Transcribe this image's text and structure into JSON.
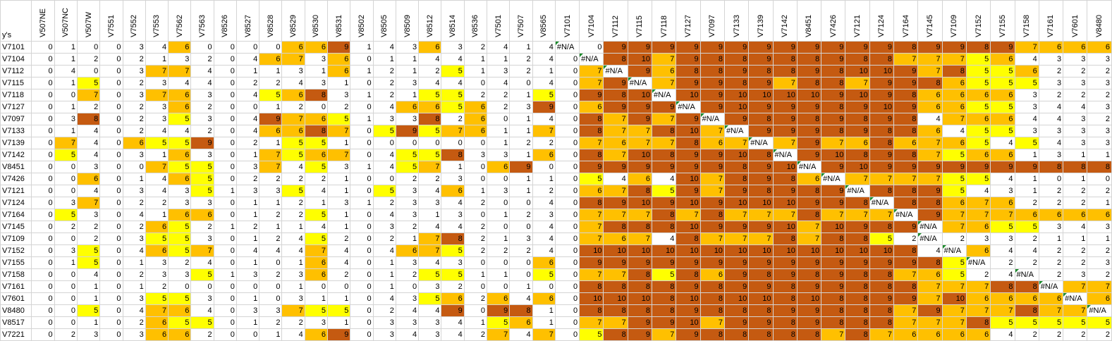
{
  "corner_label": "y's",
  "columns": [
    "V507NE",
    "V507NC",
    "V507W",
    "V7551",
    "V7552",
    "V7553",
    "V7562",
    "V7563",
    "V8526",
    "V8527",
    "V8528",
    "V8529",
    "V8530",
    "V8531",
    "V8502",
    "V8505",
    "V8509",
    "V8512",
    "V8514",
    "V8536",
    "V7501",
    "V7507",
    "V8565",
    "V7101",
    "V7104",
    "V7112",
    "V7115",
    "V7118",
    "V7127",
    "V7097",
    "V7133",
    "V7139",
    "V7142",
    "V8451",
    "V7426",
    "V7121",
    "V7124",
    "V7164",
    "V7145",
    "V7109",
    "V7152",
    "V7155",
    "V7158",
    "V7161",
    "V7601",
    "V8480"
  ],
  "rows": [
    {
      "label": "V7101",
      "values": [
        "0",
        "1",
        "0",
        "0",
        "3",
        "4",
        "6",
        "0",
        "0",
        "0",
        "0",
        "6",
        "6",
        "9",
        "1",
        "4",
        "3",
        "6",
        "3",
        "2",
        "4",
        "1",
        "4",
        "#N/A",
        "0",
        "9",
        "9",
        "9",
        "9",
        "9",
        "9",
        "9",
        "9",
        "9",
        "9",
        "9",
        "9",
        "8",
        "9",
        "9",
        "8",
        "9",
        "7",
        "6",
        "6",
        "6"
      ]
    },
    {
      "label": "V7104",
      "values": [
        "0",
        "1",
        "2",
        "0",
        "2",
        "1",
        "3",
        "2",
        "0",
        "4",
        "6",
        "7",
        "3",
        "6",
        "0",
        "1",
        "1",
        "4",
        "4",
        "1",
        "1",
        "2",
        "4",
        "0",
        "#N/A",
        "8",
        "10",
        "7",
        "9",
        "8",
        "8",
        "9",
        "8",
        "8",
        "9",
        "8",
        "8",
        "7",
        "7",
        "7",
        "5",
        "6",
        "4",
        "3",
        "3",
        "3"
      ]
    },
    {
      "label": "V7112",
      "values": [
        "0",
        "4",
        "0",
        "0",
        "3",
        "7",
        "7",
        "4",
        "0",
        "1",
        "1",
        "3",
        "1",
        "6",
        "1",
        "2",
        "1",
        "2",
        "5",
        "1",
        "3",
        "2",
        "1",
        "0",
        "7",
        "#N/A",
        "9",
        "6",
        "8",
        "8",
        "9",
        "8",
        "8",
        "9",
        "8",
        "10",
        "10",
        "9",
        "7",
        "8",
        "5",
        "5",
        "6",
        "2",
        "2",
        "2"
      ]
    },
    {
      "label": "V7115",
      "values": [
        "0",
        "1",
        "5",
        "0",
        "2",
        "3",
        "4",
        "4",
        "0",
        "2",
        "2",
        "4",
        "3",
        "1",
        "0",
        "2",
        "3",
        "4",
        "4",
        "0",
        "4",
        "0",
        "4",
        "0",
        "7",
        "9",
        "#N/A",
        "7",
        "9",
        "9",
        "8",
        "9",
        "7",
        "8",
        "8",
        "7",
        "9",
        "9",
        "8",
        "6",
        "5",
        "5",
        "5",
        "3",
        "3",
        "3"
      ]
    },
    {
      "label": "V7118",
      "values": [
        "0",
        "0",
        "7",
        "0",
        "3",
        "7",
        "6",
        "3",
        "0",
        "4",
        "5",
        "6",
        "8",
        "3",
        "1",
        "2",
        "1",
        "5",
        "5",
        "2",
        "2",
        "1",
        "5",
        "0",
        "9",
        "8",
        "10",
        "#N/A",
        "10",
        "9",
        "10",
        "10",
        "10",
        "10",
        "9",
        "10",
        "9",
        "8",
        "6",
        "6",
        "6",
        "6",
        "3",
        "2",
        "2",
        "2"
      ]
    },
    {
      "label": "V7127",
      "values": [
        "0",
        "1",
        "2",
        "0",
        "2",
        "3",
        "6",
        "2",
        "0",
        "0",
        "1",
        "2",
        "0",
        "2",
        "0",
        "4",
        "6",
        "6",
        "5",
        "6",
        "2",
        "3",
        "9",
        "0",
        "6",
        "9",
        "9",
        "9",
        "#N/A",
        "9",
        "10",
        "9",
        "9",
        "9",
        "8",
        "9",
        "10",
        "9",
        "6",
        "6",
        "5",
        "5",
        "3",
        "4",
        "4",
        "3"
      ]
    },
    {
      "label": "V7097",
      "values": [
        "0",
        "3",
        "8",
        "0",
        "2",
        "3",
        "5",
        "3",
        "0",
        "4",
        "9",
        "7",
        "6",
        "5",
        "1",
        "3",
        "3",
        "8",
        "2",
        "6",
        "0",
        "1",
        "4",
        "0",
        "8",
        "7",
        "9",
        "7",
        "9",
        "#N/A",
        "9",
        "8",
        "9",
        "8",
        "9",
        "8",
        "9",
        "8",
        "4",
        "7",
        "6",
        "6",
        "4",
        "4",
        "3",
        "2"
      ]
    },
    {
      "label": "V7133",
      "values": [
        "0",
        "1",
        "4",
        "0",
        "2",
        "4",
        "4",
        "2",
        "0",
        "4",
        "6",
        "6",
        "8",
        "7",
        "0",
        "5",
        "9",
        "5",
        "7",
        "6",
        "1",
        "1",
        "7",
        "0",
        "8",
        "7",
        "7",
        "8",
        "10",
        "7",
        "#N/A",
        "9",
        "9",
        "9",
        "8",
        "9",
        "8",
        "8",
        "6",
        "4",
        "5",
        "5",
        "3",
        "3",
        "3",
        "3"
      ]
    },
    {
      "label": "V7139",
      "values": [
        "0",
        "7",
        "4",
        "0",
        "6",
        "5",
        "5",
        "9",
        "0",
        "2",
        "1",
        "5",
        "5",
        "1",
        "0",
        "0",
        "0",
        "0",
        "0",
        "0",
        "1",
        "2",
        "2",
        "0",
        "7",
        "6",
        "7",
        "7",
        "8",
        "6",
        "7",
        "#N/A",
        "7",
        "9",
        "7",
        "6",
        "8",
        "6",
        "7",
        "6",
        "5",
        "4",
        "5",
        "4",
        "3",
        "3"
      ]
    },
    {
      "label": "V7142",
      "values": [
        "0",
        "5",
        "4",
        "0",
        "3",
        "1",
        "6",
        "3",
        "0",
        "1",
        "7",
        "5",
        "6",
        "7",
        "0",
        "4",
        "5",
        "5",
        "8",
        "3",
        "3",
        "1",
        "6",
        "0",
        "8",
        "7",
        "10",
        "8",
        "9",
        "9",
        "10",
        "8",
        "#N/A",
        "9",
        "10",
        "8",
        "9",
        "8",
        "7",
        "5",
        "6",
        "6",
        "1",
        "3",
        "1",
        "1"
      ]
    },
    {
      "label": "V8451",
      "values": [
        "0",
        "0",
        "3",
        "0",
        "0",
        "7",
        "5",
        "5",
        "0",
        "3",
        "7",
        "4",
        "5",
        "3",
        "1",
        "4",
        "5",
        "7",
        "1",
        "0",
        "6",
        "9",
        "0",
        "0",
        "9",
        "9",
        "9",
        "9",
        "9",
        "9",
        "8",
        "9",
        "10",
        "#N/A",
        "9",
        "10",
        "9",
        "9",
        "9",
        "9",
        "9",
        "9",
        "9",
        "8",
        "8",
        "8"
      ]
    },
    {
      "label": "V7426",
      "values": [
        "0",
        "0",
        "6",
        "0",
        "1",
        "4",
        "6",
        "5",
        "0",
        "2",
        "2",
        "2",
        "2",
        "1",
        "0",
        "0",
        "2",
        "2",
        "3",
        "0",
        "0",
        "1",
        "1",
        "0",
        "5",
        "4",
        "6",
        "4",
        "10",
        "7",
        "8",
        "9",
        "8",
        "6",
        "#N/A",
        "7",
        "7",
        "7",
        "7",
        "5",
        "5",
        "4",
        "1",
        "0",
        "1",
        "0"
      ]
    },
    {
      "label": "V7121",
      "values": [
        "0",
        "0",
        "4",
        "0",
        "3",
        "4",
        "3",
        "5",
        "1",
        "3",
        "3",
        "5",
        "4",
        "1",
        "0",
        "5",
        "3",
        "4",
        "6",
        "1",
        "3",
        "1",
        "2",
        "0",
        "6",
        "7",
        "8",
        "5",
        "9",
        "7",
        "9",
        "8",
        "9",
        "8",
        "9",
        "#N/A",
        "8",
        "8",
        "9",
        "5",
        "4",
        "3",
        "1",
        "2",
        "2",
        "2"
      ]
    },
    {
      "label": "V7124",
      "values": [
        "0",
        "3",
        "7",
        "0",
        "2",
        "2",
        "3",
        "3",
        "0",
        "1",
        "1",
        "2",
        "1",
        "3",
        "1",
        "2",
        "3",
        "3",
        "4",
        "2",
        "0",
        "0",
        "4",
        "0",
        "8",
        "9",
        "10",
        "9",
        "10",
        "9",
        "10",
        "10",
        "10",
        "9",
        "9",
        "8",
        "#N/A",
        "8",
        "8",
        "6",
        "7",
        "6",
        "2",
        "2",
        "2",
        "1"
      ]
    },
    {
      "label": "V7164",
      "values": [
        "0",
        "5",
        "3",
        "0",
        "4",
        "1",
        "6",
        "6",
        "0",
        "1",
        "2",
        "2",
        "5",
        "1",
        "0",
        "4",
        "3",
        "1",
        "3",
        "0",
        "1",
        "2",
        "3",
        "0",
        "7",
        "7",
        "7",
        "8",
        "7",
        "8",
        "7",
        "7",
        "7",
        "8",
        "7",
        "7",
        "7",
        "#N/A",
        "9",
        "7",
        "7",
        "7",
        "6",
        "6",
        "6",
        "6"
      ]
    },
    {
      "label": "V7145",
      "values": [
        "0",
        "2",
        "2",
        "0",
        "2",
        "6",
        "5",
        "2",
        "1",
        "2",
        "1",
        "1",
        "4",
        "1",
        "0",
        "3",
        "2",
        "4",
        "4",
        "2",
        "0",
        "0",
        "4",
        "0",
        "7",
        "8",
        "8",
        "8",
        "10",
        "9",
        "9",
        "9",
        "10",
        "7",
        "10",
        "9",
        "8",
        "9",
        "#N/A",
        "7",
        "6",
        "5",
        "5",
        "3",
        "4",
        "3"
      ]
    },
    {
      "label": "V7109",
      "values": [
        "0",
        "0",
        "2",
        "0",
        "3",
        "5",
        "5",
        "3",
        "0",
        "1",
        "2",
        "4",
        "5",
        "2",
        "0",
        "2",
        "1",
        "7",
        "8",
        "2",
        "1",
        "3",
        "4",
        "0",
        "7",
        "6",
        "7",
        "4",
        "8",
        "7",
        "7",
        "7",
        "8",
        "7",
        "8",
        "8",
        "5",
        "2",
        "#N/A",
        "2",
        "3",
        "3",
        "2",
        "1",
        "1",
        "1"
      ]
    },
    {
      "label": "V7152",
      "values": [
        "0",
        "3",
        "5",
        "0",
        "4",
        "6",
        "5",
        "7",
        "0",
        "4",
        "4",
        "4",
        "7",
        "4",
        "0",
        "4",
        "6",
        "7",
        "5",
        "2",
        "2",
        "2",
        "4",
        "0",
        "10",
        "10",
        "10",
        "10",
        "10",
        "10",
        "10",
        "10",
        "10",
        "10",
        "10",
        "10",
        "10",
        "8",
        "4",
        "#N/A",
        "6",
        "4",
        "4",
        "2",
        "2",
        "2"
      ]
    },
    {
      "label": "V7155",
      "values": [
        "0",
        "1",
        "5",
        "0",
        "1",
        "3",
        "2",
        "4",
        "0",
        "1",
        "0",
        "1",
        "6",
        "4",
        "0",
        "1",
        "3",
        "4",
        "3",
        "0",
        "0",
        "0",
        "6",
        "0",
        "9",
        "9",
        "9",
        "9",
        "9",
        "9",
        "9",
        "9",
        "9",
        "9",
        "9",
        "9",
        "9",
        "9",
        "8",
        "5",
        "#N/A",
        "2",
        "2",
        "2",
        "2",
        "3"
      ]
    },
    {
      "label": "V7158",
      "values": [
        "0",
        "0",
        "4",
        "0",
        "2",
        "3",
        "3",
        "5",
        "1",
        "3",
        "2",
        "3",
        "6",
        "2",
        "0",
        "1",
        "2",
        "5",
        "5",
        "1",
        "1",
        "0",
        "5",
        "0",
        "7",
        "7",
        "8",
        "5",
        "8",
        "6",
        "9",
        "8",
        "9",
        "8",
        "9",
        "8",
        "8",
        "7",
        "6",
        "5",
        "2",
        "4",
        "#N/A",
        "2",
        "3",
        "2"
      ]
    },
    {
      "label": "V7161",
      "values": [
        "0",
        "0",
        "1",
        "0",
        "1",
        "2",
        "0",
        "0",
        "0",
        "0",
        "0",
        "1",
        "0",
        "0",
        "0",
        "1",
        "0",
        "3",
        "2",
        "0",
        "0",
        "1",
        "0",
        "0",
        "8",
        "8",
        "8",
        "8",
        "9",
        "8",
        "9",
        "9",
        "8",
        "9",
        "9",
        "8",
        "8",
        "8",
        "7",
        "7",
        "7",
        "8",
        "8",
        "#N/A",
        "7",
        "7"
      ]
    },
    {
      "label": "V7601",
      "values": [
        "0",
        "0",
        "1",
        "0",
        "3",
        "5",
        "5",
        "3",
        "0",
        "1",
        "0",
        "3",
        "1",
        "1",
        "0",
        "4",
        "3",
        "5",
        "6",
        "2",
        "6",
        "4",
        "6",
        "0",
        "10",
        "10",
        "10",
        "8",
        "10",
        "8",
        "10",
        "10",
        "8",
        "10",
        "8",
        "8",
        "9",
        "9",
        "7",
        "10",
        "6",
        "6",
        "6",
        "6",
        "#N/A",
        "6"
      ]
    },
    {
      "label": "V8480",
      "values": [
        "0",
        "0",
        "5",
        "0",
        "4",
        "7",
        "6",
        "4",
        "0",
        "3",
        "3",
        "7",
        "5",
        "5",
        "0",
        "2",
        "4",
        "4",
        "9",
        "0",
        "9",
        "8",
        "1",
        "0",
        "8",
        "8",
        "8",
        "8",
        "9",
        "8",
        "8",
        "8",
        "9",
        "9",
        "8",
        "8",
        "8",
        "7",
        "9",
        "7",
        "7",
        "7",
        "8",
        "7",
        "7",
        "#N/A"
      ]
    },
    {
      "label": "V8517",
      "values": [
        "0",
        "0",
        "1",
        "0",
        "2",
        "6",
        "5",
        "5",
        "0",
        "1",
        "2",
        "2",
        "3",
        "1",
        "0",
        "3",
        "3",
        "3",
        "4",
        "1",
        "5",
        "6",
        "1",
        "0",
        "7",
        "7",
        "9",
        "9",
        "10",
        "7",
        "9",
        "9",
        "8",
        "9",
        "8",
        "8",
        "8",
        "7",
        "7",
        "7",
        "8",
        "5",
        "5",
        "5",
        "5",
        "5"
      ]
    },
    {
      "label": "V7221",
      "values": [
        "0",
        "2",
        "3",
        "0",
        "3",
        "6",
        "6",
        "2",
        "0",
        "0",
        "1",
        "4",
        "6",
        "9",
        "0",
        "3",
        "4",
        "3",
        "4",
        "2",
        "7",
        "4",
        "7",
        "0",
        "5",
        "8",
        "9",
        "7",
        "9",
        "8",
        "8",
        "8",
        "8",
        "8",
        "7",
        "8",
        "7",
        "6",
        "6",
        "6",
        "6",
        "4",
        "2",
        "2",
        "2",
        "2"
      ]
    }
  ],
  "colors": {
    "yellow": "#ffff00",
    "orange": "#ffc000",
    "brown": "#c55a11",
    "na_marker": "#1a8a2a",
    "grid": "#d4d4d4"
  }
}
